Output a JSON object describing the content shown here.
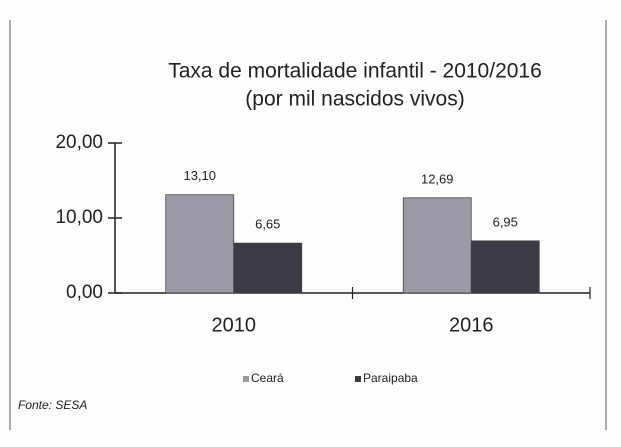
{
  "chart_data": {
    "type": "bar",
    "title": "Taxa de mortalidade infantil - 2010/2016",
    "subtitle": "(por mil nascidos vivos)",
    "categories": [
      "2010",
      "2016"
    ],
    "series": [
      {
        "name": "Ceará",
        "color": "#9b9ba8",
        "values": [
          13.1,
          12.69
        ],
        "value_labels": [
          "13,10",
          "12,69"
        ]
      },
      {
        "name": "Paraipaba",
        "color": "#3b3b46",
        "values": [
          6.65,
          6.95
        ],
        "value_labels": [
          "6,65",
          "6,95"
        ]
      }
    ],
    "ylim": [
      0,
      20
    ],
    "yticks": [
      {
        "value": 0,
        "label": "0,00"
      },
      {
        "value": 10,
        "label": "10,00"
      },
      {
        "value": 20,
        "label": "20,00"
      }
    ],
    "legend": "bottom",
    "source": "Fonte: SESA"
  }
}
